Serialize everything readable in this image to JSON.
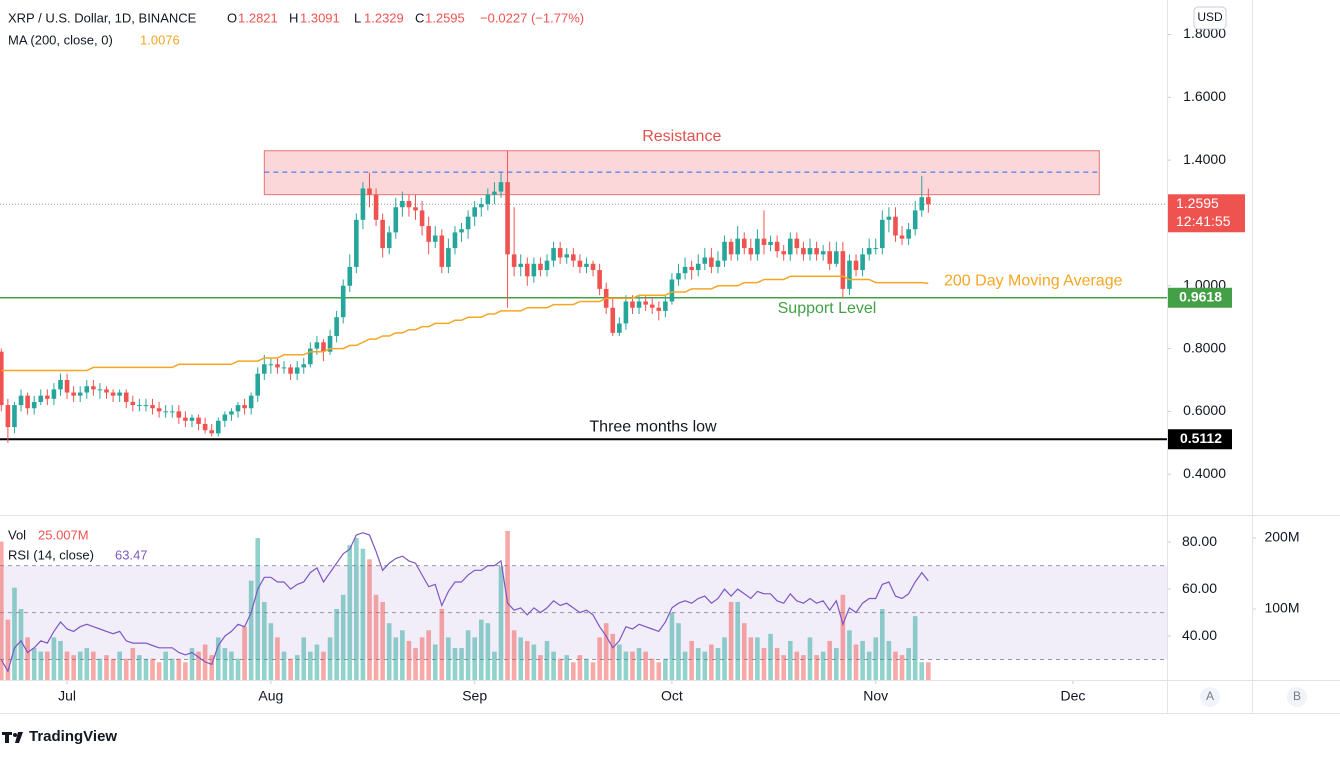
{
  "header": {
    "symbol": "XRP / U.S. Dollar, 1D, BINANCE",
    "o": "O",
    "h": "H",
    "l": "L",
    "c": "C",
    "change": "−0.0227 (−1.77%)",
    "currency": "USD",
    "countdown": "12:41:55",
    "brand": "TradingView",
    "scale_buttons": [
      "A",
      "B"
    ]
  },
  "chart_data": {
    "type": "candlestick",
    "up_color": "#26a69a",
    "down_color": "#ef5350",
    "open": [
      0.79,
      0.62,
      0.55,
      0.62,
      0.65,
      0.61,
      0.63,
      0.65,
      0.64,
      0.67,
      0.7,
      0.66,
      0.65,
      0.66,
      0.68,
      0.67,
      0.67,
      0.66,
      0.65,
      0.66,
      0.63,
      0.62,
      0.62,
      0.62,
      0.61,
      0.6,
      0.6,
      0.6,
      0.58,
      0.57,
      0.58,
      0.56,
      0.54,
      0.53,
      0.57,
      0.59,
      0.6,
      0.62,
      0.61,
      0.65,
      0.72,
      0.75,
      0.75,
      0.74,
      0.74,
      0.72,
      0.74,
      0.75,
      0.8,
      0.82,
      0.79,
      0.84,
      0.9,
      1.0,
      1.06,
      1.21,
      1.31,
      1.29,
      1.21,
      1.12,
      1.17,
      1.25,
      1.27,
      1.25,
      1.24,
      1.19,
      1.14,
      1.16,
      1.06,
      1.12,
      1.17,
      1.18,
      1.22,
      1.25,
      1.26,
      1.29,
      1.3,
      1.33,
      1.1,
      1.06,
      1.07,
      1.03,
      1.07,
      1.05,
      1.08,
      1.12,
      1.09,
      1.1,
      1.08,
      1.06,
      1.07,
      1.05,
      0.99,
      0.93,
      0.85,
      0.88,
      0.95,
      0.93,
      0.95,
      0.94,
      0.93,
      0.92,
      0.95,
      1.02,
      1.04,
      1.06,
      1.05,
      1.07,
      1.09,
      1.06,
      1.08,
      1.14,
      1.1,
      1.15,
      1.12,
      1.1,
      1.15,
      1.13,
      1.14,
      1.11,
      1.1,
      1.15,
      1.12,
      1.1,
      1.12,
      1.1,
      1.11,
      1.07,
      1.11,
      0.99,
      1.08,
      1.05,
      1.1,
      1.12,
      1.12,
      1.21,
      1.22,
      1.16,
      1.15,
      1.18,
      1.24,
      1.2821
    ],
    "high": [
      0.8,
      0.64,
      0.63,
      0.67,
      0.66,
      0.65,
      0.67,
      0.67,
      0.69,
      0.72,
      0.72,
      0.68,
      0.68,
      0.7,
      0.7,
      0.69,
      0.68,
      0.67,
      0.67,
      0.67,
      0.65,
      0.64,
      0.64,
      0.64,
      0.63,
      0.62,
      0.62,
      0.62,
      0.6,
      0.59,
      0.59,
      0.58,
      0.56,
      0.58,
      0.6,
      0.61,
      0.63,
      0.64,
      0.66,
      0.74,
      0.78,
      0.77,
      0.77,
      0.76,
      0.75,
      0.76,
      0.77,
      0.82,
      0.84,
      0.83,
      0.86,
      0.92,
      1.02,
      1.1,
      1.23,
      1.33,
      1.36,
      1.31,
      1.23,
      1.19,
      1.28,
      1.3,
      1.29,
      1.29,
      1.27,
      1.22,
      1.19,
      1.18,
      1.15,
      1.19,
      1.2,
      1.24,
      1.27,
      1.28,
      1.31,
      1.33,
      1.36,
      1.43,
      1.25,
      1.1,
      1.09,
      1.09,
      1.09,
      1.1,
      1.14,
      1.14,
      1.12,
      1.12,
      1.1,
      1.09,
      1.08,
      1.07,
      1.01,
      0.96,
      0.9,
      0.97,
      0.97,
      0.97,
      0.97,
      0.96,
      0.95,
      0.97,
      1.04,
      1.07,
      1.09,
      1.08,
      1.1,
      1.12,
      1.12,
      1.11,
      1.16,
      1.15,
      1.19,
      1.17,
      1.15,
      1.18,
      1.24,
      1.16,
      1.16,
      1.13,
      1.17,
      1.17,
      1.14,
      1.15,
      1.14,
      1.13,
      1.14,
      1.14,
      1.14,
      1.1,
      1.1,
      1.12,
      1.15,
      1.15,
      1.24,
      1.25,
      1.25,
      1.19,
      1.2,
      1.27,
      1.35,
      1.3091
    ],
    "low": [
      0.6,
      0.5,
      0.53,
      0.6,
      0.59,
      0.59,
      0.62,
      0.62,
      0.62,
      0.65,
      0.64,
      0.63,
      0.63,
      0.64,
      0.65,
      0.64,
      0.64,
      0.63,
      0.63,
      0.61,
      0.6,
      0.6,
      0.6,
      0.59,
      0.58,
      0.58,
      0.58,
      0.56,
      0.55,
      0.55,
      0.54,
      0.53,
      0.52,
      0.52,
      0.55,
      0.57,
      0.58,
      0.59,
      0.59,
      0.63,
      0.7,
      0.72,
      0.72,
      0.72,
      0.7,
      0.7,
      0.72,
      0.74,
      0.78,
      0.76,
      0.78,
      0.82,
      0.88,
      0.98,
      1.04,
      1.18,
      1.25,
      1.19,
      1.09,
      1.1,
      1.15,
      1.22,
      1.22,
      1.21,
      1.16,
      1.1,
      1.12,
      1.04,
      1.04,
      1.1,
      1.14,
      1.15,
      1.19,
      1.22,
      1.24,
      1.26,
      1.28,
      0.93,
      1.03,
      1.03,
      1.0,
      1.01,
      1.03,
      1.03,
      1.06,
      1.07,
      1.07,
      1.06,
      1.04,
      1.04,
      1.03,
      0.97,
      0.91,
      0.84,
      0.84,
      0.86,
      0.91,
      0.91,
      0.92,
      0.91,
      0.89,
      0.9,
      0.94,
      1.0,
      1.02,
      1.02,
      1.03,
      1.05,
      1.04,
      1.04,
      1.06,
      1.08,
      1.08,
      1.1,
      1.08,
      1.08,
      1.1,
      1.11,
      1.09,
      1.08,
      1.08,
      1.1,
      1.08,
      1.08,
      1.08,
      1.08,
      1.05,
      1.06,
      0.96,
      0.97,
      1.03,
      1.03,
      1.08,
      1.1,
      1.1,
      1.17,
      1.14,
      1.13,
      1.13,
      1.16,
      1.22,
      1.2329
    ],
    "close": [
      0.62,
      0.55,
      0.62,
      0.65,
      0.61,
      0.63,
      0.65,
      0.64,
      0.67,
      0.7,
      0.66,
      0.65,
      0.66,
      0.68,
      0.67,
      0.67,
      0.66,
      0.65,
      0.66,
      0.63,
      0.62,
      0.62,
      0.62,
      0.61,
      0.6,
      0.6,
      0.6,
      0.58,
      0.57,
      0.58,
      0.56,
      0.54,
      0.53,
      0.57,
      0.59,
      0.6,
      0.62,
      0.61,
      0.65,
      0.72,
      0.75,
      0.75,
      0.74,
      0.74,
      0.72,
      0.74,
      0.75,
      0.8,
      0.82,
      0.79,
      0.84,
      0.9,
      1.0,
      1.06,
      1.21,
      1.31,
      1.29,
      1.21,
      1.12,
      1.17,
      1.25,
      1.27,
      1.25,
      1.24,
      1.19,
      1.14,
      1.16,
      1.06,
      1.12,
      1.17,
      1.18,
      1.22,
      1.25,
      1.26,
      1.29,
      1.3,
      1.33,
      1.1,
      1.06,
      1.07,
      1.03,
      1.07,
      1.05,
      1.08,
      1.12,
      1.09,
      1.1,
      1.08,
      1.06,
      1.07,
      1.05,
      0.99,
      0.93,
      0.85,
      0.88,
      0.95,
      0.93,
      0.95,
      0.94,
      0.93,
      0.92,
      0.95,
      1.02,
      1.04,
      1.06,
      1.05,
      1.07,
      1.09,
      1.06,
      1.08,
      1.14,
      1.1,
      1.15,
      1.12,
      1.1,
      1.15,
      1.13,
      1.14,
      1.11,
      1.1,
      1.15,
      1.12,
      1.1,
      1.12,
      1.1,
      1.11,
      1.07,
      1.11,
      0.99,
      1.08,
      1.05,
      1.1,
      1.12,
      1.12,
      1.21,
      1.22,
      1.16,
      1.15,
      1.18,
      1.24,
      1.2821,
      1.2595
    ],
    "xlim": [
      -0.2,
      177.3
    ],
    "xticks": [
      {
        "value": 10,
        "label": "Jul"
      },
      {
        "value": 41,
        "label": "Aug"
      },
      {
        "value": 72,
        "label": "Sep"
      },
      {
        "value": 102,
        "label": "Oct"
      },
      {
        "value": 133,
        "label": "Nov"
      },
      {
        "value": 163,
        "label": "Dec"
      }
    ],
    "ylim": [
      0.27,
      1.91
    ],
    "yticks": [
      {
        "value": 1.8,
        "label": "1.8000"
      },
      {
        "value": 1.6,
        "label": "1.6000"
      },
      {
        "value": 1.4,
        "label": "1.4000"
      },
      {
        "value": 1.0,
        "label": "1.0000"
      },
      {
        "value": 0.8,
        "label": "0.8000"
      },
      {
        "value": 0.6,
        "label": "0.6000"
      },
      {
        "value": 0.4,
        "label": "0.4000"
      }
    ],
    "ma": {
      "name": "MA (200, close, 0)",
      "color": "#f5a623",
      "values": [
        0.73,
        0.73,
        0.73,
        0.73,
        0.73,
        0.73,
        0.73,
        0.73,
        0.73,
        0.73,
        0.73,
        0.73,
        0.73,
        0.73,
        0.74,
        0.74,
        0.74,
        0.74,
        0.74,
        0.74,
        0.74,
        0.74,
        0.74,
        0.74,
        0.74,
        0.74,
        0.74,
        0.75,
        0.75,
        0.75,
        0.75,
        0.75,
        0.75,
        0.75,
        0.75,
        0.75,
        0.76,
        0.76,
        0.76,
        0.76,
        0.77,
        0.77,
        0.77,
        0.78,
        0.78,
        0.78,
        0.78,
        0.79,
        0.79,
        0.79,
        0.8,
        0.8,
        0.8,
        0.81,
        0.81,
        0.82,
        0.83,
        0.83,
        0.84,
        0.84,
        0.85,
        0.85,
        0.86,
        0.86,
        0.87,
        0.87,
        0.88,
        0.88,
        0.88,
        0.89,
        0.89,
        0.9,
        0.9,
        0.9,
        0.91,
        0.91,
        0.92,
        0.92,
        0.92,
        0.92,
        0.93,
        0.93,
        0.93,
        0.93,
        0.94,
        0.94,
        0.94,
        0.94,
        0.95,
        0.95,
        0.95,
        0.95,
        0.96,
        0.96,
        0.96,
        0.96,
        0.96,
        0.97,
        0.97,
        0.97,
        0.97,
        0.97,
        0.98,
        0.98,
        0.98,
        0.99,
        0.99,
        0.99,
        0.99,
        1.0,
        1.0,
        1.0,
        1.0,
        1.01,
        1.01,
        1.01,
        1.02,
        1.02,
        1.02,
        1.02,
        1.03,
        1.03,
        1.03,
        1.03,
        1.03,
        1.03,
        1.03,
        1.03,
        1.03,
        1.02,
        1.02,
        1.02,
        1.02,
        1.01,
        1.01,
        1.01,
        1.01,
        1.01,
        1.01,
        1.01,
        1.01,
        1.0076
      ]
    },
    "annotations": {
      "resistance": {
        "label": "Resistance",
        "low": 1.29,
        "high": 1.43,
        "mid": 1.362,
        "x": [
          40,
          167
        ]
      },
      "support": {
        "label": "Support Level",
        "value": 0.9618
      },
      "low": {
        "label": "Three months low",
        "value": 0.5112
      },
      "ma_label": "200 Day Moving Average"
    },
    "volume": {
      "name": "Vol",
      "last_label": "25.007M",
      "ylim": [
        0,
        231
      ],
      "yticks": [
        {
          "value": 200,
          "label": "200M"
        },
        {
          "value": 100,
          "label": "100M"
        }
      ],
      "values": [
        195,
        85,
        130,
        100,
        60,
        45,
        40,
        40,
        60,
        55,
        40,
        35,
        40,
        45,
        40,
        30,
        35,
        30,
        40,
        30,
        45,
        35,
        30,
        30,
        25,
        40,
        30,
        30,
        25,
        45,
        40,
        50,
        35,
        60,
        45,
        40,
        30,
        75,
        140,
        200,
        110,
        80,
        60,
        40,
        30,
        35,
        60,
        40,
        50,
        40,
        60,
        100,
        120,
        190,
        200,
        185,
        170,
        120,
        110,
        80,
        60,
        70,
        55,
        45,
        60,
        70,
        50,
        100,
        60,
        45,
        45,
        70,
        60,
        85,
        80,
        40,
        160,
        210,
        70,
        60,
        55,
        50,
        35,
        55,
        40,
        30,
        35,
        25,
        35,
        30,
        25,
        60,
        80,
        65,
        50,
        40,
        40,
        45,
        40,
        30,
        25,
        30,
        95,
        80,
        40,
        55,
        45,
        40,
        50,
        45,
        60,
        110,
        110,
        80,
        60,
        60,
        45,
        65,
        45,
        35,
        55,
        40,
        35,
        60,
        35,
        40,
        55,
        45,
        120,
        70,
        50,
        55,
        40,
        60,
        100,
        55,
        40,
        35,
        45,
        90,
        25,
        25.007
      ]
    },
    "rsi": {
      "name": "RSI (14, close)",
      "color": "#7e57c2",
      "ylim": [
        21.3,
        91.1
      ],
      "bands": [
        70,
        50,
        30
      ],
      "yticks": [
        {
          "value": 80,
          "label": "80.00"
        },
        {
          "value": 60,
          "label": "60.00"
        },
        {
          "value": 40,
          "label": "40.00"
        }
      ],
      "values": [
        30,
        25,
        35,
        38,
        33,
        35,
        38,
        37,
        42,
        46,
        43,
        42,
        44,
        45,
        44,
        43,
        42,
        41,
        42,
        38,
        37,
        37,
        37,
        36,
        35,
        35,
        35,
        33,
        32,
        33,
        31,
        29,
        28,
        36,
        40,
        42,
        45,
        44,
        50,
        60,
        65,
        65,
        63,
        63,
        60,
        62,
        63,
        67,
        69,
        63,
        67,
        71,
        75,
        77,
        83,
        84,
        83,
        76,
        68,
        71,
        73,
        74,
        72,
        71,
        66,
        61,
        62,
        53,
        59,
        63,
        63,
        66,
        68,
        68,
        70,
        70,
        72,
        54,
        51,
        52,
        49,
        52,
        50,
        52,
        55,
        53,
        54,
        52,
        50,
        51,
        49,
        44,
        40,
        35,
        38,
        44,
        43,
        45,
        44,
        43,
        42,
        46,
        52,
        54,
        55,
        54,
        56,
        57,
        54,
        56,
        60,
        57,
        60,
        58,
        56,
        59,
        58,
        58,
        55,
        54,
        58,
        55,
        54,
        56,
        54,
        55,
        51,
        55,
        45,
        52,
        50,
        54,
        56,
        56,
        62,
        63,
        57,
        56,
        58,
        63,
        67,
        63.47
      ]
    }
  }
}
